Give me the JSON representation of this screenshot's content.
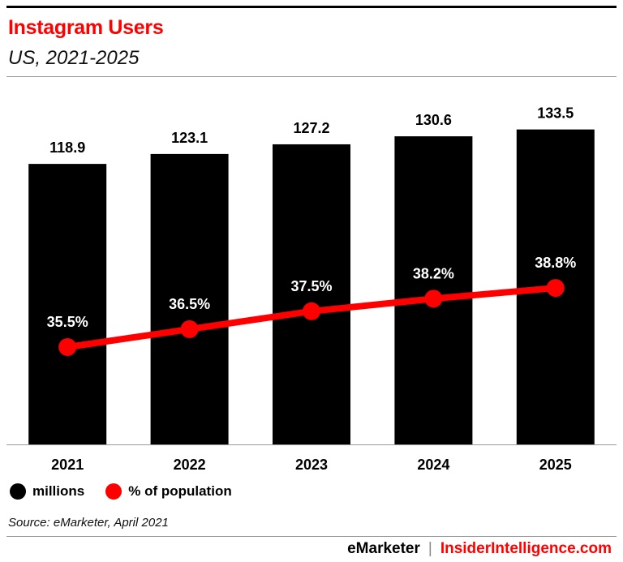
{
  "chart_data": {
    "type": "bar",
    "title": "Instagram Users",
    "subtitle": "US, 2021-2025",
    "categories": [
      "2021",
      "2022",
      "2023",
      "2024",
      "2025"
    ],
    "series": [
      {
        "name": "millions",
        "type": "bar",
        "values": [
          118.9,
          123.1,
          127.2,
          130.6,
          133.5
        ],
        "labels": [
          "118.9",
          "123.1",
          "127.2",
          "130.6",
          "133.5"
        ],
        "color": "#000000"
      },
      {
        "name": "% of population",
        "type": "line",
        "values": [
          35.5,
          36.5,
          37.5,
          38.2,
          38.8
        ],
        "labels": [
          "35.5%",
          "36.5%",
          "37.5%",
          "38.2%",
          "38.8%"
        ],
        "color": "#ff0000"
      }
    ],
    "ylim": [
      0,
      154
    ],
    "grid": false,
    "legend": "bottom-left"
  },
  "source": "Source: eMarketer, April 2021",
  "footer": {
    "brand1": "eMarketer",
    "separator": "|",
    "brand2": "InsiderIntelligence.com"
  }
}
